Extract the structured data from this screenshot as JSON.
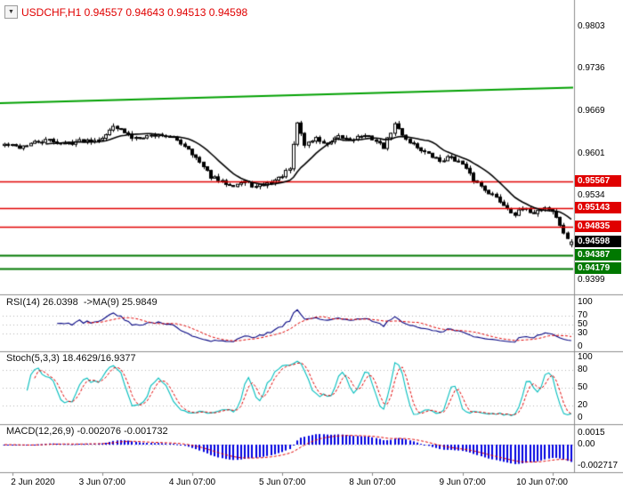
{
  "icons": {
    "symbol_dropdown": "▼"
  },
  "colors": {
    "title_red": "#e00000",
    "candle_up": "#ffffff",
    "candle_down": "#000000",
    "candle_border": "#000000",
    "ma_line": "#000000",
    "trend_line": "#00a000",
    "resistance": "#e00000",
    "support": "#007800",
    "current_bg": "#000000",
    "rsi_line": "#000080",
    "stoch_k": "#00bdbd",
    "signal_red": "#e00000",
    "macd_hist": "#0000e0",
    "guide": "#b4b4b4",
    "separator": "#8c8c8c",
    "axis_text": "#000000"
  },
  "chart_data": [
    {
      "type": "candlestick",
      "title": "USDCHF,H1 0.94557 0.94643 0.94513 0.94598",
      "symbol": "USDCHF",
      "timeframe": "H1",
      "bars": 152,
      "last_bar_ohlc": {
        "open": 0.94557,
        "high": 0.94643,
        "low": 0.94513,
        "close": 0.94598
      },
      "close_anchors": [
        [
          0,
          0.9615
        ],
        [
          4,
          0.9611
        ],
        [
          8,
          0.9618
        ],
        [
          12,
          0.9622
        ],
        [
          16,
          0.9616
        ],
        [
          20,
          0.9621
        ],
        [
          24,
          0.9623
        ],
        [
          27,
          0.9629
        ],
        [
          29,
          0.9647
        ],
        [
          31,
          0.9638
        ],
        [
          34,
          0.9626
        ],
        [
          38,
          0.9629
        ],
        [
          42,
          0.9631
        ],
        [
          46,
          0.9622
        ],
        [
          49,
          0.9609
        ],
        [
          52,
          0.9586
        ],
        [
          55,
          0.9564
        ],
        [
          58,
          0.9555
        ],
        [
          61,
          0.9551
        ],
        [
          64,
          0.9556
        ],
        [
          67,
          0.9547
        ],
        [
          70,
          0.9553
        ],
        [
          73,
          0.9561
        ],
        [
          76,
          0.9576
        ],
        [
          78,
          0.965
        ],
        [
          80,
          0.9615
        ],
        [
          83,
          0.9625
        ],
        [
          86,
          0.9614
        ],
        [
          89,
          0.9627
        ],
        [
          92,
          0.9623
        ],
        [
          95,
          0.9629
        ],
        [
          98,
          0.9625
        ],
        [
          101,
          0.9611
        ],
        [
          104,
          0.9647
        ],
        [
          107,
          0.9624
        ],
        [
          110,
          0.9611
        ],
        [
          113,
          0.9599
        ],
        [
          116,
          0.9589
        ],
        [
          119,
          0.9596
        ],
        [
          122,
          0.9583
        ],
        [
          125,
          0.9559
        ],
        [
          128,
          0.9544
        ],
        [
          131,
          0.953
        ],
        [
          134,
          0.9514
        ],
        [
          136,
          0.9504
        ],
        [
          138,
          0.9512
        ],
        [
          141,
          0.9507
        ],
        [
          144,
          0.9515
        ],
        [
          146,
          0.9509
        ],
        [
          148,
          0.9487
        ],
        [
          150,
          0.9463
        ],
        [
          151,
          0.94598
        ]
      ],
      "ma_period": 12,
      "trend_line": {
        "start_price": 0.9681,
        "end_price": 0.9706
      },
      "y_axis_ticks": [
        {
          "text": "0.9803",
          "price": 0.9803
        },
        {
          "text": "0.9736",
          "price": 0.9736
        },
        {
          "text": "0.9669",
          "price": 0.9669
        },
        {
          "text": "0.9601",
          "price": 0.9601
        },
        {
          "text": "0.9534",
          "price": 0.9534
        },
        {
          "text": "0.9399",
          "price": 0.9399
        }
      ],
      "resistance_levels": [
        {
          "label": "0.95567",
          "price": 0.95567
        },
        {
          "label": "0.95143",
          "price": 0.95143
        },
        {
          "label": "0.94835",
          "price": 0.94835
        }
      ],
      "support_levels": [
        {
          "label": "0.94387",
          "price": 0.94387
        },
        {
          "label": "0.94179",
          "price": 0.94179
        }
      ],
      "current_price": {
        "label": "0.94598",
        "price": 0.94598
      },
      "x_axis_ticks": [
        {
          "text": "2 Jun 2020",
          "bar": 2
        },
        {
          "text": "3 Jun 07:00",
          "bar": 26
        },
        {
          "text": "4 Jun 07:00",
          "bar": 50
        },
        {
          "text": "5 Jun 07:00",
          "bar": 74
        },
        {
          "text": "8 Jun 07:00",
          "bar": 98
        },
        {
          "text": "9 Jun 07:00",
          "bar": 122
        },
        {
          "text": "10 Jun 07:00",
          "bar": 146
        }
      ]
    },
    {
      "type": "line",
      "title": "RSI(14) 26.0398  ->MA(9) 25.9849",
      "name": "RSI",
      "period": 14,
      "value": 26.0398,
      "signal_name": "MA(9)",
      "signal_value": 25.9849,
      "range": [
        0,
        100
      ],
      "guide_levels": [
        70,
        50,
        30
      ],
      "y_axis_ticks": [
        {
          "text": "100",
          "value": 100
        },
        {
          "text": "70",
          "value": 70
        },
        {
          "text": "50",
          "value": 50
        },
        {
          "text": "30",
          "value": 30
        },
        {
          "text": "0",
          "value": 0
        }
      ]
    },
    {
      "type": "line",
      "title": "Stoch(5,3,3) 18.4629/16.9377",
      "name": "Stochastic",
      "params": [
        5,
        3,
        3
      ],
      "k_value": 18.4629,
      "d_value": 16.9377,
      "range": [
        0,
        100
      ],
      "guide_levels": [
        80,
        50,
        20
      ],
      "y_axis_ticks": [
        {
          "text": "100",
          "value": 100
        },
        {
          "text": "80",
          "value": 80
        },
        {
          "text": "50",
          "value": 50
        },
        {
          "text": "20",
          "value": 20
        },
        {
          "text": "0",
          "value": 0
        }
      ]
    },
    {
      "type": "bar",
      "title": "MACD(12,26,9) -0.002076 -0.001732",
      "name": "MACD",
      "params": [
        12,
        26,
        9
      ],
      "macd_value": -0.002076,
      "signal_value": -0.001732,
      "range": [
        0.0016,
        -0.0028
      ],
      "y_axis_ticks": [
        {
          "text": "0.0015",
          "value": 0.0015
        },
        {
          "text": "0.00",
          "value": 0
        },
        {
          "text": "-0.002717",
          "value": -0.002717
        }
      ]
    }
  ]
}
